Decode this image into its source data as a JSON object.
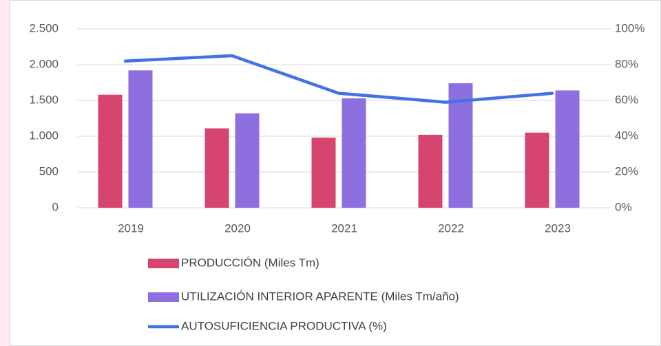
{
  "chart_data": {
    "type": "bar",
    "categories": [
      "2019",
      "2020",
      "2021",
      "2022",
      "2023"
    ],
    "series": [
      {
        "name": "PRODUCCIÓN (Miles Tm)",
        "type": "bar",
        "color": "#d6456f",
        "values": [
          1580,
          1110,
          980,
          1020,
          1050
        ]
      },
      {
        "name": "UTILIZACIÓN INTERIOR APARENTE (Miles Tm/año)",
        "type": "bar",
        "color": "#8e6fe0",
        "values": [
          1920,
          1320,
          1530,
          1740,
          1640
        ]
      },
      {
        "name": "AUTOSUFICIENCIA PRODUCTIVA (%)",
        "type": "line",
        "axis": "y2",
        "color": "#4472e4",
        "values": [
          82,
          85,
          64,
          59,
          64
        ]
      }
    ],
    "ylim": [
      0,
      2500
    ],
    "yticks": [
      0,
      500,
      {
        "value": 1000,
        "label": "1.000"
      },
      {
        "value": 1500,
        "label": "1.500"
      },
      {
        "value": 2000,
        "label": "2.000"
      },
      {
        "value": 2500,
        "label": "2.500"
      }
    ],
    "y2lim": [
      0,
      100
    ],
    "y2ticks": [
      {
        "value": 0,
        "label": "0%"
      },
      {
        "value": 20,
        "label": "20%"
      },
      {
        "value": 40,
        "label": "40%"
      },
      {
        "value": 60,
        "label": "60%"
      },
      {
        "value": 80,
        "label": "80%"
      },
      {
        "value": 100,
        "label": "100%"
      }
    ],
    "grid": true,
    "legend": "bottom"
  }
}
